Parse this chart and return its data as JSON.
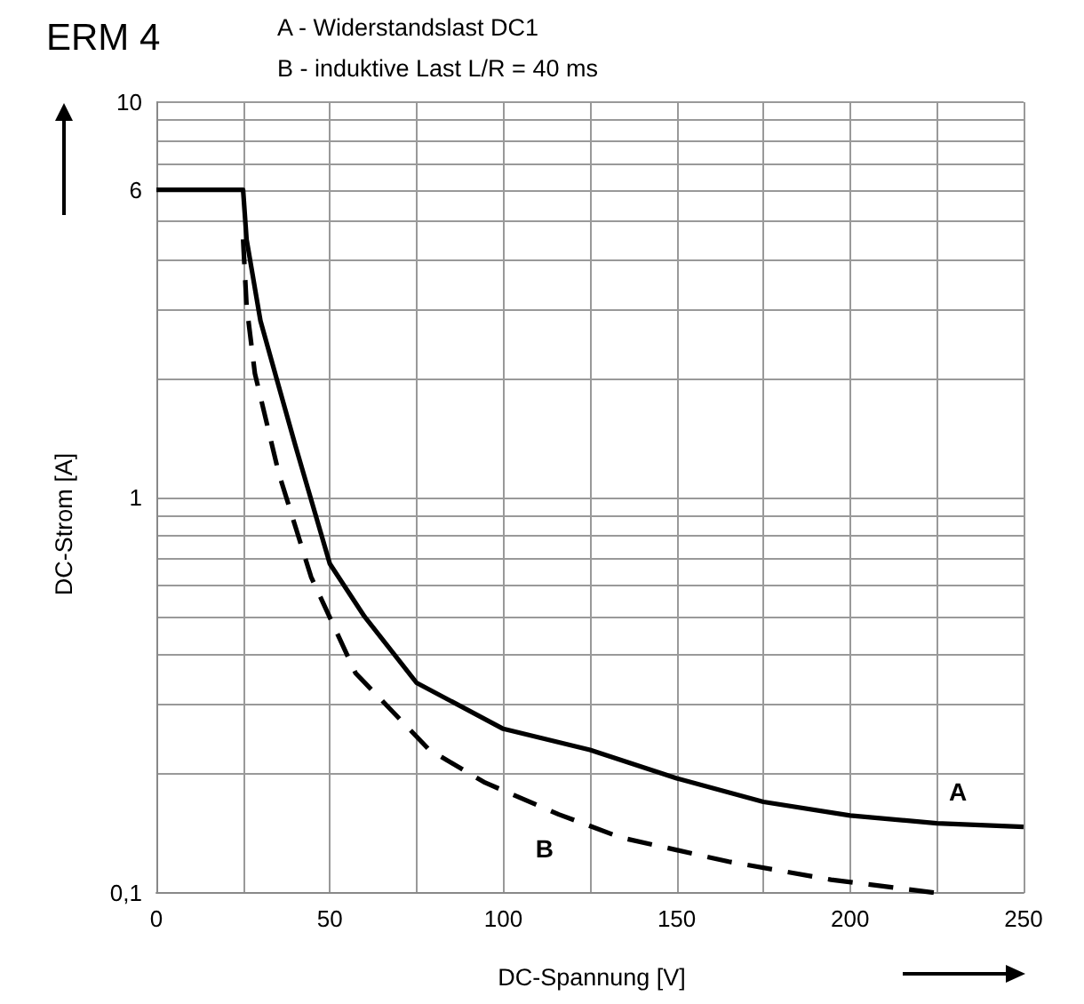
{
  "chart_data": {
    "type": "line",
    "title": "ERM 4",
    "xlabel": "DC-Spannung [V]",
    "ylabel": "DC-Strom [A]",
    "annotations": [
      "A - Widerstandslast DC1",
      "B - induktive Last L/R = 40 ms"
    ],
    "series": [
      {
        "name": "A",
        "color": "#000000",
        "line_style": "solid",
        "x": [
          0,
          25,
          26,
          30,
          35,
          40,
          50,
          60,
          75,
          100,
          125,
          150,
          175,
          200,
          225,
          250
        ],
        "values": [
          6,
          6,
          4.5,
          2.8,
          1.95,
          1.36,
          0.68,
          0.5,
          0.34,
          0.26,
          0.23,
          0.195,
          0.17,
          0.157,
          0.15,
          0.147
        ]
      },
      {
        "name": "B",
        "color": "#000000",
        "line_style": "dashed",
        "x": [
          25,
          26,
          28.4,
          35.3,
          44.6,
          57.4,
          78.7,
          94.8,
          116,
          134,
          165,
          194.5,
          225
        ],
        "values": [
          4.5,
          3.06,
          2.06,
          1.15,
          0.63,
          0.36,
          0.23,
          0.19,
          0.158,
          0.138,
          0.12,
          0.108,
          0.1
        ]
      }
    ],
    "log": "y",
    "grid": true,
    "legend": false,
    "marker": "none",
    "xlim": [
      0,
      250
    ],
    "xticks": [
      0,
      {
        "value": 25,
        "label": null
      },
      50,
      {
        "value": 75,
        "label": null
      },
      100,
      {
        "value": 125,
        "label": null
      },
      150,
      {
        "value": 175,
        "label": null
      },
      200,
      {
        "value": 225,
        "label": null
      },
      250
    ],
    "ylim": [
      0.1,
      10
    ],
    "yticks": [
      {
        "value": 0.1,
        "label": "0,1"
      },
      {
        "value": 0.2,
        "label": null
      },
      {
        "value": 0.3,
        "label": null
      },
      {
        "value": 0.4,
        "label": null
      },
      {
        "value": 0.5,
        "label": null
      },
      {
        "value": 0.6,
        "label": null
      },
      {
        "value": 0.7,
        "label": null
      },
      {
        "value": 0.8,
        "label": null
      },
      {
        "value": 0.9,
        "label": null
      },
      1,
      {
        "value": 2,
        "label": null
      },
      {
        "value": 3,
        "label": null
      },
      {
        "value": 4,
        "label": null
      },
      {
        "value": 5,
        "label": null
      },
      6,
      {
        "value": 7,
        "label": null
      },
      {
        "value": 8,
        "label": null
      },
      {
        "value": 9,
        "label": null
      },
      10
    ]
  }
}
